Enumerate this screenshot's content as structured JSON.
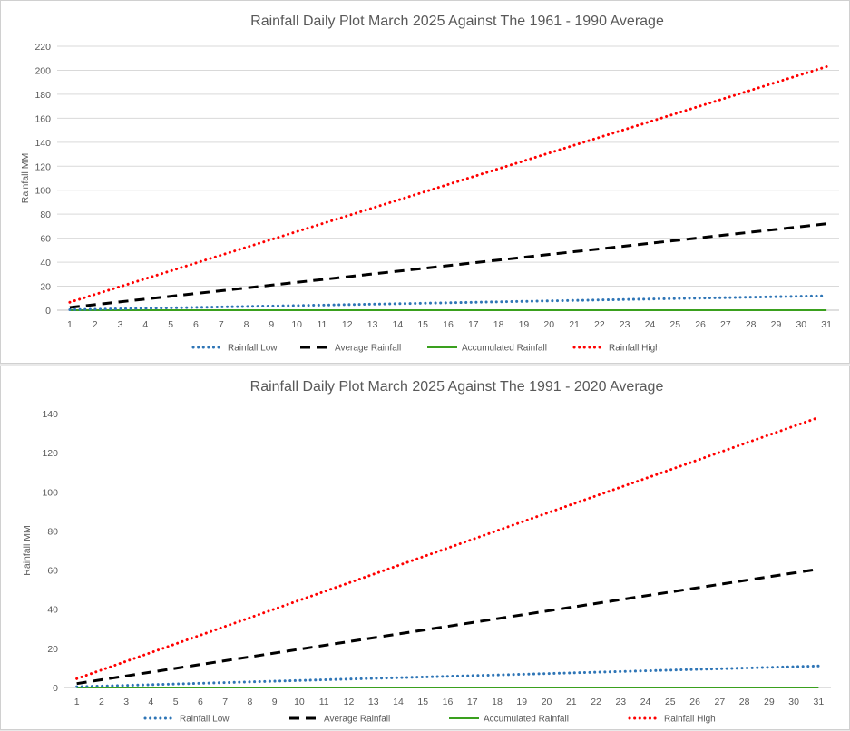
{
  "chart_data": [
    {
      "type": "line",
      "title": "Rainfall Daily Plot March 2025 Against The 1961 - 1990 Average",
      "xlabel": "",
      "ylabel": "Rainfall MM",
      "ylim": [
        0,
        220
      ],
      "yticks": [
        0,
        20,
        40,
        60,
        80,
        100,
        120,
        140,
        160,
        180,
        200,
        220
      ],
      "categories": [
        "1",
        "2",
        "3",
        "4",
        "5",
        "6",
        "7",
        "8",
        "9",
        "10",
        "11",
        "12",
        "13",
        "14",
        "15",
        "16",
        "17",
        "18",
        "19",
        "20",
        "21",
        "22",
        "23",
        "24",
        "25",
        "26",
        "27",
        "28",
        "29",
        "30",
        "31"
      ],
      "grid": true,
      "legend": "bottom",
      "series": [
        {
          "name": "Rainfall Low",
          "color": "#2E75B6",
          "style": "dotted",
          "start": 0.4,
          "end": 12.0
        },
        {
          "name": "Average Rainfall",
          "color": "#000000",
          "style": "dashed",
          "start": 2.3,
          "end": 72.0
        },
        {
          "name": "Accumulated Rainfall",
          "color": "#3AA01E",
          "style": "solid",
          "start": 0.0,
          "end": 0.0
        },
        {
          "name": "Rainfall High",
          "color": "#FF0000",
          "style": "dotted",
          "start": 6.6,
          "end": 203.0
        }
      ]
    },
    {
      "type": "line",
      "title": "Rainfall Daily Plot March 2025 Against The 1991 - 2020 Average",
      "xlabel": "",
      "ylabel": "Rainfall MM",
      "ylim": [
        0,
        140
      ],
      "yticks": [
        0,
        20,
        40,
        60,
        80,
        100,
        120,
        140
      ],
      "categories": [
        "1",
        "2",
        "3",
        "4",
        "5",
        "6",
        "7",
        "8",
        "9",
        "10",
        "11",
        "12",
        "13",
        "14",
        "15",
        "16",
        "17",
        "18",
        "19",
        "20",
        "21",
        "22",
        "23",
        "24",
        "25",
        "26",
        "27",
        "28",
        "29",
        "30",
        "31"
      ],
      "grid": false,
      "legend": "bottom",
      "series": [
        {
          "name": "Rainfall Low",
          "color": "#2E75B6",
          "style": "dotted",
          "start": 0.4,
          "end": 11.0
        },
        {
          "name": "Average Rainfall",
          "color": "#000000",
          "style": "dashed",
          "start": 2.0,
          "end": 60.5
        },
        {
          "name": "Accumulated Rainfall",
          "color": "#3AA01E",
          "style": "solid",
          "start": 0.0,
          "end": 0.0
        },
        {
          "name": "Rainfall High",
          "color": "#FF0000",
          "style": "dotted",
          "start": 4.5,
          "end": 138.0
        }
      ]
    }
  ]
}
